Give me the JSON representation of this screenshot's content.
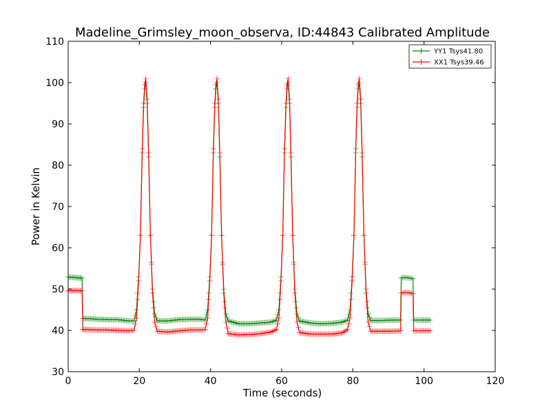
{
  "chart_data": {
    "type": "line",
    "title": "Madeline_Grimsley_moon_observa, ID:44843 Calibrated Amplitude",
    "xlabel": "Time (seconds)",
    "ylabel": "Power in Kelvin",
    "xlim": [
      0,
      120
    ],
    "ylim": [
      30,
      110
    ],
    "xticks": [
      0,
      20,
      40,
      60,
      80,
      100,
      120
    ],
    "yticks": [
      30,
      40,
      50,
      60,
      70,
      80,
      90,
      100,
      110
    ],
    "grid": false,
    "legend_position": "top-right",
    "series": [
      {
        "name": "YY1 Tsys41.80",
        "color": "#008000",
        "x": [
          0,
          1,
          2,
          3,
          3.9,
          4.1,
          5,
          8,
          11,
          14,
          17,
          18.5,
          19.2,
          19.8,
          20.3,
          20.8,
          21.2,
          21.5,
          21.8,
          22.2,
          22.6,
          23.1,
          23.7,
          24.3,
          25,
          28,
          31,
          34,
          37,
          38.5,
          39.2,
          39.8,
          40.3,
          40.8,
          41.2,
          41.5,
          41.8,
          42.2,
          42.6,
          43.1,
          43.7,
          44.3,
          45,
          48,
          51,
          54,
          57,
          58.5,
          59.2,
          59.8,
          60.3,
          60.8,
          61.2,
          61.5,
          61.8,
          62.2,
          62.6,
          63.1,
          63.7,
          64.3,
          65,
          68,
          71,
          74,
          77,
          78.5,
          79.2,
          79.8,
          80.3,
          80.8,
          81.2,
          81.5,
          81.8,
          82.2,
          82.6,
          83.1,
          83.7,
          84.3,
          85,
          88,
          91,
          93.4,
          93.6,
          95,
          96.5,
          96.9,
          97.1,
          99,
          101,
          102
        ],
        "y": [
          52.9,
          52.9,
          52.8,
          52.7,
          52.7,
          42.9,
          42.9,
          42.7,
          42.6,
          42.6,
          42.3,
          42.3,
          45,
          53,
          63,
          83,
          94,
          98.5,
          100,
          95,
          82,
          63,
          50,
          44,
          42.3,
          42.3,
          42.6,
          42.7,
          42.7,
          42.5,
          45,
          53,
          63,
          83,
          94,
          98.5,
          100,
          95,
          82,
          63,
          50,
          44,
          42.3,
          41.6,
          41.6,
          41.8,
          42,
          42.5,
          45,
          53,
          63,
          83,
          94,
          98.5,
          100,
          95,
          82,
          63,
          50,
          44,
          42.3,
          41.8,
          41.6,
          41.7,
          42,
          42.5,
          45,
          53,
          63,
          83,
          94,
          98.5,
          100,
          95,
          82,
          63,
          50,
          44,
          42.4,
          42.4,
          42.5,
          42.5,
          52.7,
          52.8,
          52.6,
          52.5,
          42.5,
          42.5,
          42.5,
          42.5
        ]
      },
      {
        "name": "XX1 Tsys39.46",
        "color": "#ff0000",
        "x": [
          0,
          1,
          2,
          3,
          3.9,
          4.1,
          5,
          8,
          11,
          14,
          17,
          18.5,
          19.2,
          19.8,
          20.3,
          20.8,
          21.2,
          21.5,
          21.8,
          22.2,
          22.6,
          23.1,
          23.7,
          24.3,
          25,
          28,
          31,
          34,
          37,
          38.5,
          39.2,
          39.8,
          40.3,
          40.8,
          41.2,
          41.5,
          41.8,
          42.2,
          42.6,
          43.1,
          43.7,
          44.3,
          45,
          48,
          51,
          54,
          57,
          58.5,
          59.2,
          59.8,
          60.3,
          60.8,
          61.2,
          61.5,
          61.8,
          62.2,
          62.6,
          63.1,
          63.7,
          64.3,
          65,
          68,
          71,
          74,
          77,
          78.5,
          79.2,
          79.8,
          80.3,
          80.8,
          81.2,
          81.5,
          81.8,
          82.2,
          82.6,
          83.1,
          83.7,
          84.3,
          85,
          88,
          91,
          93.4,
          93.6,
          95,
          96.5,
          96.9,
          97.1,
          99,
          101,
          102
        ],
        "y": [
          49.6,
          49.6,
          49.7,
          49.6,
          49.6,
          40.2,
          40.2,
          40.1,
          40.1,
          40,
          39.9,
          40,
          43,
          52,
          63,
          84,
          95,
          99.5,
          101,
          96,
          83,
          63,
          49,
          42,
          39.8,
          39.6,
          39.9,
          40.1,
          40.1,
          40.2,
          43,
          52,
          63,
          84,
          95,
          99.5,
          101,
          96,
          83,
          63,
          49,
          42,
          39.2,
          38.9,
          39,
          39.2,
          39.6,
          40.2,
          43,
          52,
          63,
          84,
          95,
          99.5,
          101,
          96,
          83,
          63,
          49,
          42,
          39.5,
          39.1,
          39.1,
          39.1,
          39.4,
          40.2,
          43,
          52,
          63,
          84,
          95,
          99.5,
          101,
          96,
          83,
          63,
          49,
          42,
          39.8,
          39.8,
          39.8,
          39.9,
          49.1,
          49.2,
          49,
          48.9,
          39.9,
          39.9,
          39.9,
          39.9
        ]
      }
    ]
  }
}
